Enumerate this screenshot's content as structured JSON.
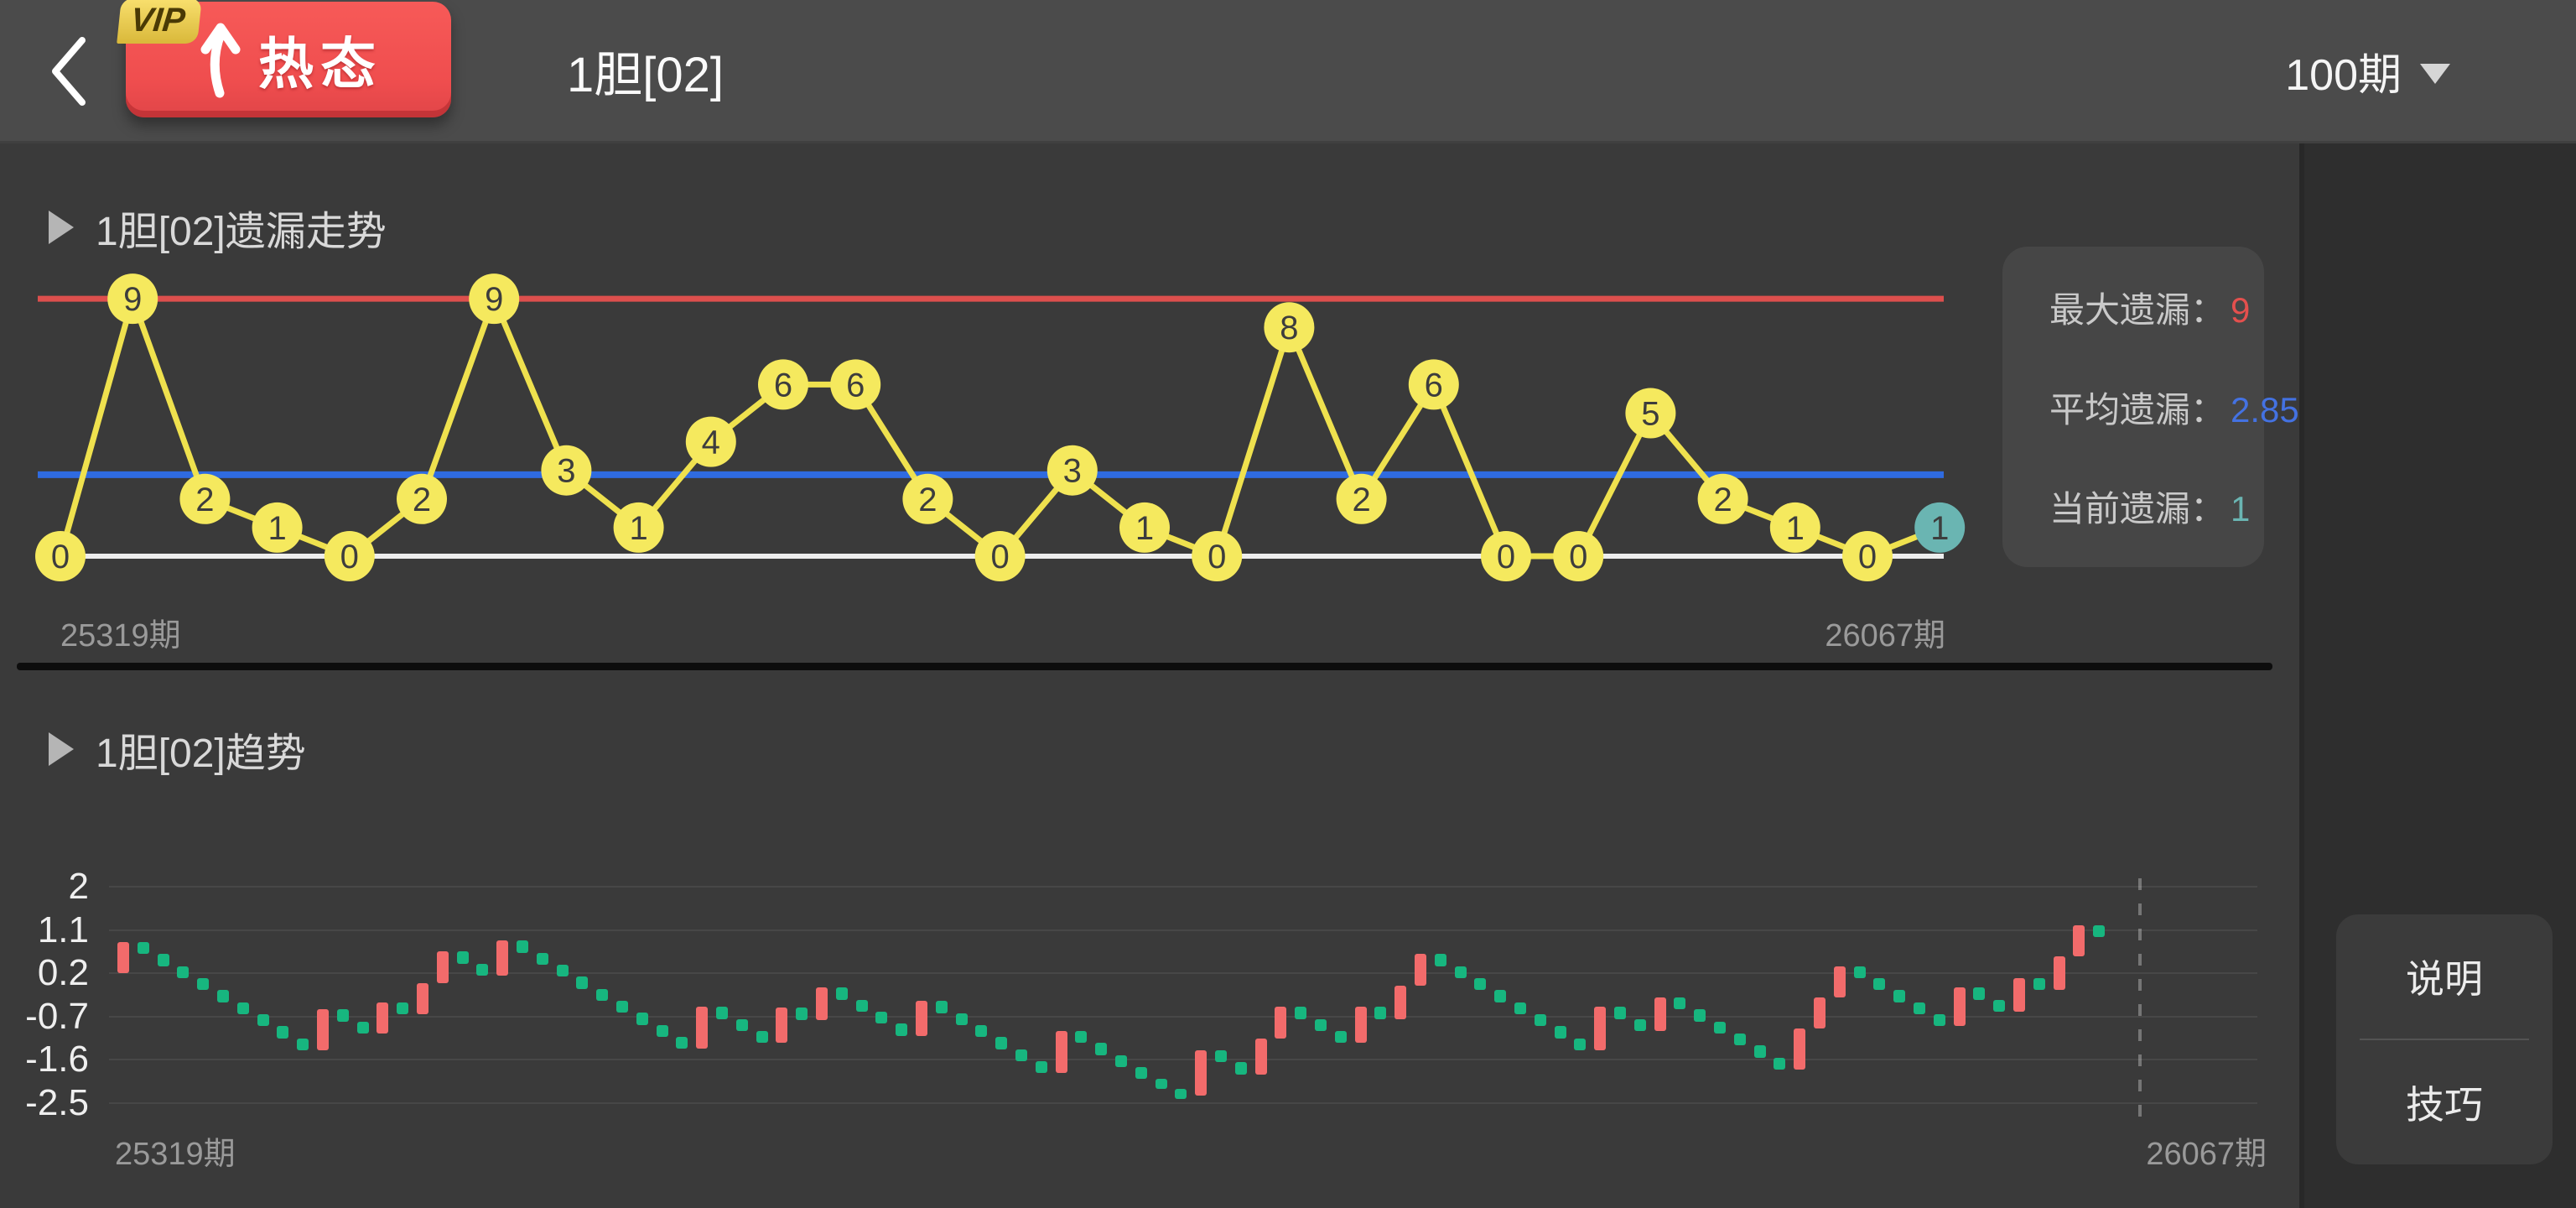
{
  "header": {
    "title": "1胆[02]",
    "vip_tag": "VIP",
    "hot_button": "热态",
    "period_selector": "100期"
  },
  "stats": [
    {
      "label": "最大遗漏：",
      "value": "9",
      "color": "#e4504e"
    },
    {
      "label": "平均遗漏：",
      "value": "2.85",
      "color": "#4472e2"
    },
    {
      "label": "当前遗漏：",
      "value": "1",
      "color": "#6ab5b2"
    }
  ],
  "side_menu": {
    "items": [
      "说明",
      "技巧"
    ]
  },
  "chart_data": [
    {
      "type": "line",
      "title": "1胆[02]遗漏走势",
      "x_start_label": "25319期",
      "x_end_label": "26067期",
      "values": [
        0,
        9,
        2,
        1,
        0,
        2,
        9,
        3,
        1,
        4,
        6,
        6,
        2,
        0,
        3,
        1,
        0,
        8,
        2,
        6,
        0,
        0,
        5,
        2,
        1,
        0,
        1
      ],
      "current_index": 26,
      "reference_lines": {
        "max": 9,
        "avg": 2.85,
        "zero": 0
      },
      "ylim": [
        0,
        9
      ],
      "legend_position": "none",
      "grid": false,
      "colors": {
        "max_line": "#dd4f4d",
        "avg_line": "#2f6be0",
        "zero_line": "#ededed",
        "link": "#efe14e",
        "node_fill": "#f5e95e",
        "current_fill": "#6ab5b2",
        "node_text": "#3d3d3d"
      }
    },
    {
      "type": "candlestick",
      "title": "1胆[02]趋势",
      "x_start_label": "25319期",
      "x_end_label": "26067期",
      "y_ticks": [
        2,
        1.1,
        0.2,
        -0.7,
        -1.6,
        -2.5
      ],
      "ylim": [
        -2.5,
        2
      ],
      "grid": true,
      "up_color": "#f26b6b",
      "down_color": "#17b67f",
      "candles": [
        [
          0.2,
          0.85,
          "u"
        ],
        [
          0.6,
          0.85,
          "d"
        ],
        [
          0.35,
          0.6,
          "d"
        ],
        [
          0.1,
          0.35,
          "d"
        ],
        [
          -0.15,
          0.1,
          "d"
        ],
        [
          -0.4,
          -0.15,
          "d"
        ],
        [
          -0.65,
          -0.4,
          "d"
        ],
        [
          -0.9,
          -0.65,
          "d"
        ],
        [
          -1.15,
          -0.9,
          "d"
        ],
        [
          -1.4,
          -1.15,
          "d"
        ],
        [
          -1.4,
          -0.55,
          "u"
        ],
        [
          -0.8,
          -0.55,
          "d"
        ],
        [
          -1.05,
          -0.8,
          "d"
        ],
        [
          -1.05,
          -0.4,
          "u"
        ],
        [
          -0.65,
          -0.4,
          "d"
        ],
        [
          -0.65,
          0.0,
          "u"
        ],
        [
          0.0,
          0.65,
          "u"
        ],
        [
          0.4,
          0.65,
          "d"
        ],
        [
          0.15,
          0.4,
          "d"
        ],
        [
          0.15,
          0.88,
          "u"
        ],
        [
          0.63,
          0.88,
          "d"
        ],
        [
          0.38,
          0.63,
          "d"
        ],
        [
          0.13,
          0.38,
          "d"
        ],
        [
          -0.12,
          0.13,
          "d"
        ],
        [
          -0.37,
          -0.12,
          "d"
        ],
        [
          -0.62,
          -0.37,
          "d"
        ],
        [
          -0.87,
          -0.62,
          "d"
        ],
        [
          -1.12,
          -0.87,
          "d"
        ],
        [
          -1.37,
          -1.12,
          "d"
        ],
        [
          -1.37,
          -0.5,
          "u"
        ],
        [
          -0.75,
          -0.5,
          "d"
        ],
        [
          -1.0,
          -0.75,
          "d"
        ],
        [
          -1.25,
          -1.0,
          "d"
        ],
        [
          -1.25,
          -0.52,
          "u"
        ],
        [
          -0.77,
          -0.52,
          "d"
        ],
        [
          -0.77,
          -0.1,
          "u"
        ],
        [
          -0.35,
          -0.1,
          "d"
        ],
        [
          -0.6,
          -0.35,
          "d"
        ],
        [
          -0.85,
          -0.6,
          "d"
        ],
        [
          -1.1,
          -0.85,
          "d"
        ],
        [
          -1.1,
          -0.38,
          "u"
        ],
        [
          -0.63,
          -0.38,
          "d"
        ],
        [
          -0.88,
          -0.63,
          "d"
        ],
        [
          -1.13,
          -0.88,
          "d"
        ],
        [
          -1.38,
          -1.13,
          "d"
        ],
        [
          -1.63,
          -1.38,
          "d"
        ],
        [
          -1.88,
          -1.63,
          "d"
        ],
        [
          -1.88,
          -1.0,
          "u"
        ],
        [
          -1.25,
          -1.0,
          "d"
        ],
        [
          -1.5,
          -1.25,
          "d"
        ],
        [
          -1.75,
          -1.5,
          "d"
        ],
        [
          -2.0,
          -1.75,
          "d"
        ],
        [
          -2.2,
          -2.0,
          "d"
        ],
        [
          -2.35,
          -2.2,
          "d"
        ],
        [
          -2.35,
          -1.4,
          "u"
        ],
        [
          -1.65,
          -1.4,
          "d"
        ],
        [
          -1.9,
          -1.65,
          "d"
        ],
        [
          -1.9,
          -1.15,
          "u"
        ],
        [
          -1.15,
          -0.5,
          "u"
        ],
        [
          -0.75,
          -0.5,
          "d"
        ],
        [
          -1.0,
          -0.75,
          "d"
        ],
        [
          -1.25,
          -1.0,
          "d"
        ],
        [
          -1.25,
          -0.5,
          "u"
        ],
        [
          -0.75,
          -0.5,
          "d"
        ],
        [
          -0.75,
          -0.05,
          "u"
        ],
        [
          -0.05,
          0.6,
          "u"
        ],
        [
          0.35,
          0.6,
          "d"
        ],
        [
          0.1,
          0.35,
          "d"
        ],
        [
          -0.15,
          0.1,
          "d"
        ],
        [
          -0.4,
          -0.15,
          "d"
        ],
        [
          -0.65,
          -0.4,
          "d"
        ],
        [
          -0.9,
          -0.65,
          "d"
        ],
        [
          -1.15,
          -0.9,
          "d"
        ],
        [
          -1.4,
          -1.15,
          "d"
        ],
        [
          -1.4,
          -0.5,
          "u"
        ],
        [
          -0.75,
          -0.5,
          "d"
        ],
        [
          -1.0,
          -0.75,
          "d"
        ],
        [
          -1.0,
          -0.3,
          "u"
        ],
        [
          -0.55,
          -0.3,
          "d"
        ],
        [
          -0.8,
          -0.55,
          "d"
        ],
        [
          -1.05,
          -0.8,
          "d"
        ],
        [
          -1.3,
          -1.05,
          "d"
        ],
        [
          -1.55,
          -1.3,
          "d"
        ],
        [
          -1.8,
          -1.55,
          "d"
        ],
        [
          -1.8,
          -0.95,
          "u"
        ],
        [
          -0.95,
          -0.3,
          "u"
        ],
        [
          -0.3,
          0.35,
          "u"
        ],
        [
          0.1,
          0.35,
          "d"
        ],
        [
          -0.15,
          0.1,
          "d"
        ],
        [
          -0.4,
          -0.15,
          "d"
        ],
        [
          -0.65,
          -0.4,
          "d"
        ],
        [
          -0.9,
          -0.65,
          "d"
        ],
        [
          -0.9,
          -0.1,
          "u"
        ],
        [
          -0.35,
          -0.1,
          "d"
        ],
        [
          -0.6,
          -0.35,
          "d"
        ],
        [
          -0.6,
          0.1,
          "u"
        ],
        [
          -0.15,
          0.1,
          "d"
        ],
        [
          -0.15,
          0.55,
          "u"
        ],
        [
          0.55,
          1.2,
          "u"
        ],
        [
          0.95,
          1.2,
          "d"
        ]
      ]
    }
  ]
}
